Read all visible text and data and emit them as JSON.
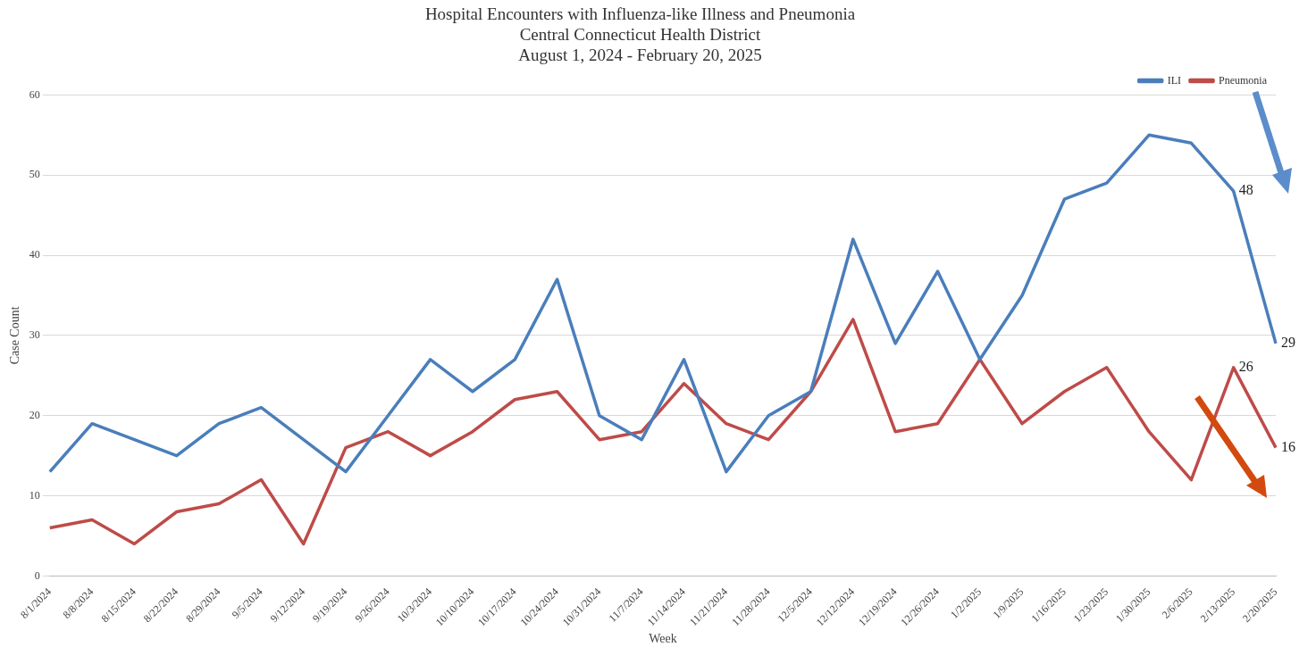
{
  "chart_data": {
    "type": "line",
    "title": "Hospital Encounters with Influenza-like Illness and Pneumonia",
    "subtitle": "Central Connecticut Health District\nAugust 1, 2024 - February 20, 2025",
    "xlabel": "Week",
    "ylabel": "Case Count",
    "categories": [
      "8/1/2024",
      "8/8/2024",
      "8/15/2024",
      "8/22/2024",
      "8/29/2024",
      "9/5/2024",
      "9/12/2024",
      "9/19/2024",
      "9/26/2024",
      "10/3/2024",
      "10/10/2024",
      "10/17/2024",
      "10/24/2024",
      "10/31/2024",
      "11/7/2024",
      "11/14/2024",
      "11/21/2024",
      "11/28/2024",
      "12/5/2024",
      "12/12/2024",
      "12/19/2024",
      "12/26/2024",
      "1/2/2025",
      "1/9/2025",
      "1/16/2025",
      "1/23/2025",
      "1/30/2025",
      "2/6/2025",
      "2/13/2025",
      "2/20/2025"
    ],
    "series": [
      {
        "name": "ILI",
        "color": "#4a7ebb",
        "values": [
          13,
          19,
          17,
          15,
          19,
          21,
          17,
          13,
          20,
          27,
          23,
          27,
          37,
          20,
          17,
          27,
          13,
          20,
          23,
          42,
          29,
          38,
          27,
          35,
          47,
          49,
          55,
          54,
          48,
          29
        ],
        "value_labels": [
          null,
          null,
          null,
          null,
          null,
          null,
          null,
          null,
          null,
          null,
          null,
          null,
          null,
          null,
          null,
          null,
          null,
          null,
          null,
          null,
          null,
          null,
          null,
          null,
          null,
          null,
          null,
          null,
          "48",
          "29"
        ]
      },
      {
        "name": "Pneumonia",
        "color": "#be4b48",
        "values": [
          6,
          7,
          4,
          8,
          9,
          12,
          4,
          16,
          18,
          15,
          18,
          22,
          23,
          17,
          18,
          24,
          19,
          17,
          23,
          32,
          18,
          19,
          27,
          19,
          23,
          26,
          18,
          12,
          26,
          16
        ],
        "value_labels": [
          null,
          null,
          null,
          null,
          null,
          null,
          null,
          null,
          null,
          null,
          null,
          null,
          null,
          null,
          null,
          null,
          null,
          null,
          null,
          null,
          null,
          null,
          null,
          null,
          null,
          null,
          null,
          null,
          "26",
          "16"
        ]
      }
    ],
    "ylim": [
      0,
      60
    ],
    "yticks": [
      0,
      10,
      20,
      30,
      40,
      50,
      60
    ],
    "grid": "y",
    "legend": "top right",
    "marker": "none",
    "line_style": "solid"
  }
}
